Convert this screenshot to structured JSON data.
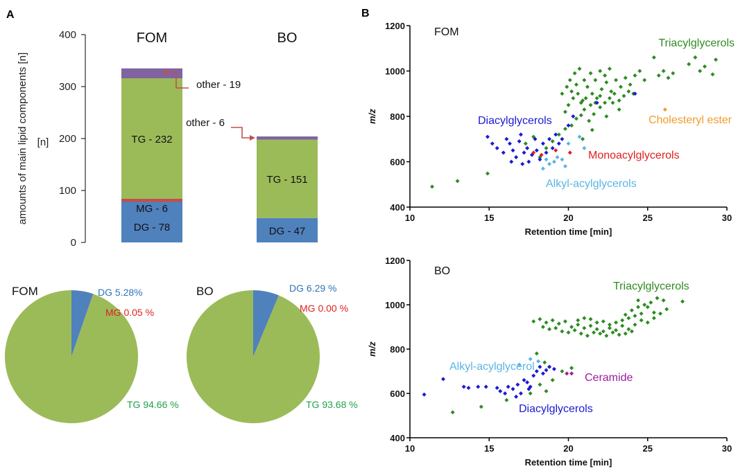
{
  "panels": {
    "a": "A",
    "b": "B"
  },
  "colors": {
    "dg": "#4f81bd",
    "mg": "#c0504d",
    "tg": "#9bbb59",
    "other": "#8064a2",
    "green": "#2e8b22",
    "blue": "#1a1ad2",
    "lightblue": "#5ab4e6",
    "red": "#e02020",
    "orange": "#f39a2a",
    "purple": "#9b1d9b",
    "arrow": "#c0504d",
    "dgtext": "#2e75b6",
    "mgtext": "#e02020",
    "tgtext": "#21a04a"
  },
  "chart_data": [
    {
      "id": "stacked-bar",
      "type": "bar",
      "categories": [
        "FOM",
        "BO"
      ],
      "ylabel": "amounts of main lipid components [n]",
      "ylim": [
        0,
        400
      ],
      "yticks": [
        "0",
        "100",
        "200",
        "300",
        "400"
      ],
      "series": [
        {
          "key": "dg",
          "values": [
            78,
            47
          ],
          "labels": [
            "DG - 78",
            "DG - 47"
          ]
        },
        {
          "key": "mg",
          "values": [
            6,
            0
          ],
          "labels": [
            "MG - 6",
            ""
          ]
        },
        {
          "key": "tg",
          "values": [
            232,
            151
          ],
          "labels": [
            "TG - 232",
            "TG - 151"
          ]
        },
        {
          "key": "other",
          "values": [
            19,
            6
          ],
          "labels": [
            "other - 19",
            "other - 6"
          ]
        }
      ]
    },
    {
      "id": "pie-fom",
      "type": "pie",
      "title": "FOM",
      "slices": [
        {
          "key": "dg",
          "value": 5.28,
          "label": "DG 5.28%"
        },
        {
          "key": "mg",
          "value": 0.05,
          "label": "MG 0.05 %"
        },
        {
          "key": "tg",
          "value": 94.66,
          "label": "TG 94.66 %"
        }
      ]
    },
    {
      "id": "pie-bo",
      "type": "pie",
      "title": "BO",
      "slices": [
        {
          "key": "dg",
          "value": 6.29,
          "label": "DG 6.29 %"
        },
        {
          "key": "mg",
          "value": 0.0,
          "label": "MG 0.00 %"
        },
        {
          "key": "tg",
          "value": 93.68,
          "label": "TG 93.68 %"
        }
      ]
    },
    {
      "id": "scatter-fom",
      "type": "scatter",
      "title": "FOM",
      "xlabel": "Retention time [min]",
      "ylabel": "m/z",
      "xlim": [
        10,
        30
      ],
      "ylim": [
        400,
        1200
      ],
      "xticks": [
        "10",
        "15",
        "20",
        "25",
        "30"
      ],
      "yticks": [
        "400",
        "600",
        "800",
        "1000",
        "1200"
      ],
      "annotations": [
        {
          "text": "Triacylglycerols",
          "color": "green"
        },
        {
          "text": "Diacylglycerols",
          "color": "blue"
        },
        {
          "text": "Cholesteryl ester",
          "color": "orange"
        },
        {
          "text": "Monoacylglycerols",
          "color": "red"
        },
        {
          "text": "Alkyl-acylglycerols",
          "color": "lightblue"
        }
      ],
      "series": [
        {
          "color": "green",
          "points": [
            [
              11.4,
              490
            ],
            [
              13,
              515
            ],
            [
              14.9,
              548
            ],
            [
              18.2,
              620
            ],
            [
              18.6,
              660
            ],
            [
              19,
              690
            ],
            [
              19.4,
              720
            ],
            [
              19.8,
              745
            ],
            [
              20.2,
              760
            ],
            [
              20.5,
              790
            ],
            [
              20.8,
              805
            ],
            [
              21,
              830
            ],
            [
              21.3,
              780
            ],
            [
              21.6,
              810
            ],
            [
              22,
              840
            ],
            [
              22.4,
              800
            ],
            [
              22.8,
              860
            ],
            [
              23.2,
              830
            ],
            [
              19.8,
              820
            ],
            [
              20,
              850
            ],
            [
              20.3,
              880
            ],
            [
              20.6,
              900
            ],
            [
              20.9,
              870
            ],
            [
              21.2,
              930
            ],
            [
              21.5,
              900
            ],
            [
              21.8,
              880
            ],
            [
              22.1,
              920
            ],
            [
              22.4,
              950
            ],
            [
              22.7,
              910
            ],
            [
              23,
              960
            ],
            [
              23.3,
              930
            ],
            [
              23.6,
              970
            ],
            [
              23.9,
              940
            ],
            [
              24.2,
              980
            ],
            [
              24.5,
              1000
            ],
            [
              24.8,
              960
            ],
            [
              20.1,
              960
            ],
            [
              20.4,
              990
            ],
            [
              20.7,
              1010
            ],
            [
              21,
              960
            ],
            [
              21.4,
              990
            ],
            [
              21.7,
              960
            ],
            [
              22,
              1000
            ],
            [
              22.3,
              980
            ],
            [
              22.6,
              1010
            ],
            [
              19.6,
              900
            ],
            [
              19.9,
              930
            ],
            [
              20.2,
              910
            ],
            [
              20.5,
              940
            ],
            [
              20.8,
              860
            ],
            [
              21.1,
              880
            ],
            [
              21.4,
              850
            ],
            [
              21.7,
              860
            ],
            [
              22,
              890
            ],
            [
              22.3,
              860
            ],
            [
              22.6,
              880
            ],
            [
              22.9,
              900
            ],
            [
              23.2,
              870
            ],
            [
              23.5,
              890
            ],
            [
              23.8,
              910
            ],
            [
              24.1,
              900
            ],
            [
              25.4,
              1060
            ],
            [
              25.7,
              980
            ],
            [
              26,
              1000
            ],
            [
              26.3,
              970
            ],
            [
              26.6,
              990
            ],
            [
              27.6,
              1030
            ],
            [
              28,
              1060
            ],
            [
              28.3,
              1000
            ],
            [
              28.6,
              1020
            ],
            [
              29.1,
              985
            ],
            [
              29.3,
              1050
            ],
            [
              17.3,
              680
            ],
            [
              17.8,
              710
            ],
            [
              20.9,
              700
            ],
            [
              21.5,
              740
            ]
          ]
        },
        {
          "color": "blue",
          "points": [
            [
              14.9,
              710
            ],
            [
              15.2,
              680
            ],
            [
              15.5,
              660
            ],
            [
              15.9,
              640
            ],
            [
              16.1,
              700
            ],
            [
              16.3,
              680
            ],
            [
              16.5,
              650
            ],
            [
              16.7,
              620
            ],
            [
              16.9,
              690
            ],
            [
              17,
              720
            ],
            [
              17.2,
              640
            ],
            [
              17.4,
              660
            ],
            [
              17.5,
              600
            ],
            [
              17.7,
              630
            ],
            [
              17.9,
              700
            ],
            [
              18,
              650
            ],
            [
              18.2,
              610
            ],
            [
              18.4,
              680
            ],
            [
              18.6,
              640
            ],
            [
              18.8,
              700
            ],
            [
              19,
              660
            ],
            [
              19.2,
              720
            ],
            [
              19.4,
              680
            ],
            [
              19.6,
              700
            ],
            [
              20,
              760
            ],
            [
              20.3,
              800
            ],
            [
              21.8,
              860
            ],
            [
              24.2,
              900
            ],
            [
              16.4,
              600
            ],
            [
              17.1,
              590
            ]
          ]
        },
        {
          "color": "red",
          "points": [
            [
              17.8,
              640
            ],
            [
              18.3,
              630
            ],
            [
              19.2,
              650
            ],
            [
              20.1,
              640
            ]
          ]
        },
        {
          "color": "lightblue",
          "points": [
            [
              18.4,
              570
            ],
            [
              18.8,
              590
            ],
            [
              19.1,
              600
            ],
            [
              19.3,
              620
            ],
            [
              19.6,
              610
            ],
            [
              20,
              680
            ],
            [
              20.7,
              710
            ],
            [
              21,
              660
            ],
            [
              19.8,
              580
            ],
            [
              18.6,
              610
            ]
          ]
        },
        {
          "color": "orange",
          "points": [
            [
              26.1,
              830
            ]
          ]
        }
      ]
    },
    {
      "id": "scatter-bo",
      "type": "scatter",
      "title": "BO",
      "xlabel": "Retention time [min]",
      "ylabel": "m/z",
      "xlim": [
        10,
        30
      ],
      "ylim": [
        400,
        1200
      ],
      "xticks": [
        "10",
        "15",
        "20",
        "25",
        "30"
      ],
      "yticks": [
        "400",
        "600",
        "800",
        "1000",
        "1200"
      ],
      "annotations": [
        {
          "text": "Triacylglycerols",
          "color": "green"
        },
        {
          "text": "Alkyl-acylglycerol",
          "color": "lightblue"
        },
        {
          "text": "Ceramide",
          "color": "purple"
        },
        {
          "text": "Diacylglycerols",
          "color": "blue"
        }
      ],
      "series": [
        {
          "color": "green",
          "points": [
            [
              12.7,
              515
            ],
            [
              14.5,
              540
            ],
            [
              16.1,
              570
            ],
            [
              18,
              780
            ],
            [
              18.5,
              740
            ],
            [
              18.8,
              720
            ],
            [
              17.6,
              600
            ],
            [
              18.2,
              640
            ],
            [
              18.6,
              610
            ],
            [
              17.8,
              925
            ],
            [
              18.2,
              935
            ],
            [
              18.6,
              920
            ],
            [
              19,
              930
            ],
            [
              19.4,
              915
            ],
            [
              19.8,
              925
            ],
            [
              20.2,
              900
            ],
            [
              20.6,
              910
            ],
            [
              21,
              895
            ],
            [
              21.4,
              905
            ],
            [
              21.8,
              890
            ],
            [
              22.2,
              880
            ],
            [
              22.6,
              895
            ],
            [
              23,
              885
            ],
            [
              23.4,
              905
            ],
            [
              23.8,
              890
            ],
            [
              24.2,
              910
            ],
            [
              24.6,
              930
            ],
            [
              25,
              920
            ],
            [
              25.4,
              940
            ],
            [
              25.8,
              960
            ],
            [
              18.4,
              900
            ],
            [
              18.8,
              890
            ],
            [
              19.2,
              895
            ],
            [
              19.6,
              880
            ],
            [
              20,
              875
            ],
            [
              20.4,
              885
            ],
            [
              20.8,
              870
            ],
            [
              21.2,
              860
            ],
            [
              21.6,
              875
            ],
            [
              22,
              870
            ],
            [
              22.4,
              860
            ],
            [
              22.8,
              875
            ],
            [
              23.2,
              865
            ],
            [
              23.6,
              870
            ],
            [
              24,
              880
            ],
            [
              20.6,
              930
            ],
            [
              21,
              940
            ],
            [
              21.4,
              935
            ],
            [
              21.8,
              920
            ],
            [
              22.2,
              925
            ],
            [
              22.6,
              910
            ],
            [
              23,
              920
            ],
            [
              23.4,
              930
            ],
            [
              23.8,
              940
            ],
            [
              24.2,
              950
            ],
            [
              24.6,
              960
            ],
            [
              24,
              975
            ],
            [
              24.4,
              990
            ],
            [
              24.8,
              1000
            ],
            [
              25.2,
              1010
            ],
            [
              25.6,
              1030
            ],
            [
              26,
              1020
            ],
            [
              23.6,
              955
            ],
            [
              24.4,
              1020
            ],
            [
              25,
              990
            ],
            [
              25.4,
              965
            ],
            [
              26.2,
              980
            ],
            [
              27.2,
              1015
            ],
            [
              19.6,
              700
            ],
            [
              20.2,
              715
            ],
            [
              19,
              660
            ]
          ]
        },
        {
          "color": "blue",
          "points": [
            [
              10.9,
              595
            ],
            [
              12.1,
              665
            ],
            [
              13.4,
              630
            ],
            [
              13.7,
              625
            ],
            [
              14.3,
              630
            ],
            [
              14.8,
              630
            ],
            [
              15.5,
              625
            ],
            [
              15.7,
              610
            ],
            [
              16.2,
              630
            ],
            [
              16.5,
              620
            ],
            [
              16.8,
              640
            ],
            [
              17,
              600
            ],
            [
              17.2,
              660
            ],
            [
              17.4,
              650
            ],
            [
              17.6,
              630
            ],
            [
              17.8,
              680
            ],
            [
              18,
              700
            ],
            [
              18.2,
              720
            ],
            [
              18.4,
              690
            ],
            [
              18.6,
              705
            ],
            [
              18.8,
              720
            ],
            [
              19.1,
              710
            ],
            [
              16.7,
              585
            ],
            [
              17.5,
              620
            ],
            [
              16,
              600
            ]
          ]
        },
        {
          "color": "lightblue",
          "points": [
            [
              16.9,
              730
            ],
            [
              17.6,
              755
            ],
            [
              18.1,
              745
            ]
          ]
        },
        {
          "color": "purple",
          "points": [
            [
              19.9,
              690
            ],
            [
              20.2,
              690
            ]
          ]
        }
      ]
    }
  ]
}
